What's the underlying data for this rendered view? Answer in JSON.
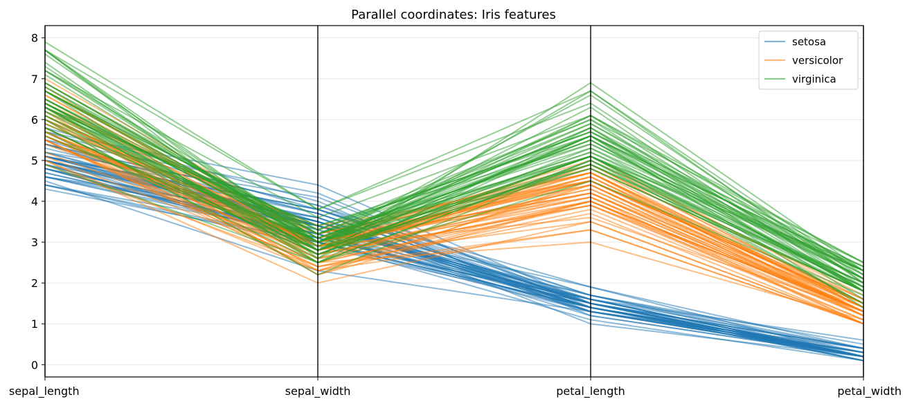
{
  "chart_data": {
    "type": "parallel-coordinates",
    "title": "Parallel coordinates: Iris features",
    "dimensions": [
      "sepal_length",
      "sepal_width",
      "petal_length",
      "petal_width"
    ],
    "ylim": [
      -0.3,
      8.3
    ],
    "yticks": [
      "0",
      "1",
      "2",
      "3",
      "4",
      "5",
      "6",
      "7",
      "8"
    ],
    "grid": "horizontal",
    "legend_position": "top-right",
    "series": [
      {
        "name": "setosa",
        "color": "#1f77b4",
        "lines": [
          [
            5.1,
            3.5,
            1.4,
            0.2
          ],
          [
            4.9,
            3.0,
            1.4,
            0.2
          ],
          [
            4.7,
            3.2,
            1.3,
            0.2
          ],
          [
            4.6,
            3.1,
            1.5,
            0.2
          ],
          [
            5.0,
            3.6,
            1.4,
            0.2
          ],
          [
            5.4,
            3.9,
            1.7,
            0.4
          ],
          [
            4.6,
            3.4,
            1.4,
            0.3
          ],
          [
            5.0,
            3.4,
            1.5,
            0.2
          ],
          [
            4.4,
            2.9,
            1.4,
            0.2
          ],
          [
            4.9,
            3.1,
            1.5,
            0.1
          ],
          [
            5.4,
            3.7,
            1.5,
            0.2
          ],
          [
            4.8,
            3.4,
            1.6,
            0.2
          ],
          [
            4.8,
            3.0,
            1.4,
            0.1
          ],
          [
            4.3,
            3.0,
            1.1,
            0.1
          ],
          [
            5.8,
            4.0,
            1.2,
            0.2
          ],
          [
            5.7,
            4.4,
            1.5,
            0.4
          ],
          [
            5.4,
            3.9,
            1.3,
            0.4
          ],
          [
            5.1,
            3.5,
            1.4,
            0.3
          ],
          [
            5.7,
            3.8,
            1.7,
            0.3
          ],
          [
            5.1,
            3.8,
            1.5,
            0.3
          ],
          [
            5.4,
            3.4,
            1.7,
            0.2
          ],
          [
            5.1,
            3.7,
            1.5,
            0.4
          ],
          [
            4.6,
            3.6,
            1.0,
            0.2
          ],
          [
            5.1,
            3.3,
            1.7,
            0.5
          ],
          [
            4.8,
            3.4,
            1.9,
            0.2
          ],
          [
            5.0,
            3.0,
            1.6,
            0.2
          ],
          [
            5.0,
            3.4,
            1.6,
            0.4
          ],
          [
            5.2,
            3.5,
            1.5,
            0.2
          ],
          [
            5.2,
            3.4,
            1.4,
            0.2
          ],
          [
            4.7,
            3.2,
            1.6,
            0.2
          ],
          [
            4.8,
            3.1,
            1.6,
            0.2
          ],
          [
            5.4,
            3.4,
            1.5,
            0.4
          ],
          [
            5.2,
            4.1,
            1.5,
            0.1
          ],
          [
            5.5,
            4.2,
            1.4,
            0.2
          ],
          [
            4.9,
            3.1,
            1.5,
            0.2
          ],
          [
            5.0,
            3.2,
            1.2,
            0.2
          ],
          [
            5.5,
            3.5,
            1.3,
            0.2
          ],
          [
            4.9,
            3.6,
            1.4,
            0.1
          ],
          [
            4.4,
            3.0,
            1.3,
            0.2
          ],
          [
            5.1,
            3.4,
            1.5,
            0.2
          ],
          [
            5.0,
            3.5,
            1.3,
            0.3
          ],
          [
            4.5,
            2.3,
            1.3,
            0.3
          ],
          [
            4.4,
            3.2,
            1.3,
            0.2
          ],
          [
            5.0,
            3.5,
            1.6,
            0.6
          ],
          [
            5.1,
            3.8,
            1.9,
            0.4
          ],
          [
            4.8,
            3.0,
            1.4,
            0.3
          ],
          [
            5.1,
            3.8,
            1.6,
            0.2
          ],
          [
            4.6,
            3.2,
            1.4,
            0.2
          ],
          [
            5.3,
            3.7,
            1.5,
            0.2
          ],
          [
            5.0,
            3.3,
            1.4,
            0.2
          ]
        ]
      },
      {
        "name": "versicolor",
        "color": "#ff7f0e",
        "lines": [
          [
            7.0,
            3.2,
            4.7,
            1.4
          ],
          [
            6.4,
            3.2,
            4.5,
            1.5
          ],
          [
            6.9,
            3.1,
            4.9,
            1.5
          ],
          [
            5.5,
            2.3,
            4.0,
            1.3
          ],
          [
            6.5,
            2.8,
            4.6,
            1.5
          ],
          [
            5.7,
            2.8,
            4.5,
            1.3
          ],
          [
            6.3,
            3.3,
            4.7,
            1.6
          ],
          [
            4.9,
            2.4,
            3.3,
            1.0
          ],
          [
            6.6,
            2.9,
            4.6,
            1.3
          ],
          [
            5.2,
            2.7,
            3.9,
            1.4
          ],
          [
            5.0,
            2.0,
            3.5,
            1.0
          ],
          [
            5.9,
            3.0,
            4.2,
            1.5
          ],
          [
            6.0,
            2.2,
            4.0,
            1.0
          ],
          [
            6.1,
            2.9,
            4.7,
            1.4
          ],
          [
            5.6,
            2.9,
            3.6,
            1.3
          ],
          [
            6.7,
            3.1,
            4.4,
            1.4
          ],
          [
            5.6,
            3.0,
            4.5,
            1.5
          ],
          [
            5.8,
            2.7,
            4.1,
            1.0
          ],
          [
            6.2,
            2.2,
            4.5,
            1.5
          ],
          [
            5.6,
            2.5,
            3.9,
            1.1
          ],
          [
            5.9,
            3.2,
            4.8,
            1.8
          ],
          [
            6.1,
            2.8,
            4.0,
            1.3
          ],
          [
            6.3,
            2.5,
            4.9,
            1.5
          ],
          [
            6.1,
            2.8,
            4.7,
            1.2
          ],
          [
            6.4,
            2.9,
            4.3,
            1.3
          ],
          [
            6.6,
            3.0,
            4.4,
            1.4
          ],
          [
            6.8,
            2.8,
            4.8,
            1.4
          ],
          [
            6.7,
            3.0,
            5.0,
            1.7
          ],
          [
            6.0,
            2.9,
            4.5,
            1.5
          ],
          [
            5.7,
            2.6,
            3.5,
            1.0
          ],
          [
            5.5,
            2.4,
            3.8,
            1.1
          ],
          [
            5.5,
            2.4,
            3.7,
            1.0
          ],
          [
            5.8,
            2.7,
            3.9,
            1.2
          ],
          [
            6.0,
            2.7,
            5.1,
            1.6
          ],
          [
            5.4,
            3.0,
            4.5,
            1.5
          ],
          [
            6.0,
            3.4,
            4.5,
            1.6
          ],
          [
            6.7,
            3.1,
            4.7,
            1.5
          ],
          [
            6.3,
            2.3,
            4.4,
            1.3
          ],
          [
            5.6,
            3.0,
            4.1,
            1.3
          ],
          [
            5.5,
            2.5,
            4.0,
            1.3
          ],
          [
            5.5,
            2.6,
            4.4,
            1.2
          ],
          [
            6.1,
            3.0,
            4.6,
            1.4
          ],
          [
            5.8,
            2.6,
            4.0,
            1.2
          ],
          [
            5.0,
            2.3,
            3.3,
            1.0
          ],
          [
            5.6,
            2.7,
            4.2,
            1.3
          ],
          [
            5.7,
            3.0,
            4.2,
            1.2
          ],
          [
            5.7,
            2.9,
            4.2,
            1.3
          ],
          [
            6.2,
            2.9,
            4.3,
            1.3
          ],
          [
            5.1,
            2.5,
            3.0,
            1.1
          ],
          [
            5.7,
            2.8,
            4.1,
            1.3
          ]
        ]
      },
      {
        "name": "virginica",
        "color": "#2ca02c",
        "lines": [
          [
            6.3,
            3.3,
            6.0,
            2.5
          ],
          [
            5.8,
            2.7,
            5.1,
            1.9
          ],
          [
            7.1,
            3.0,
            5.9,
            2.1
          ],
          [
            6.3,
            2.9,
            5.6,
            1.8
          ],
          [
            6.5,
            3.0,
            5.8,
            2.2
          ],
          [
            7.6,
            3.0,
            6.6,
            2.1
          ],
          [
            4.9,
            2.5,
            4.5,
            1.7
          ],
          [
            7.3,
            2.9,
            6.3,
            1.8
          ],
          [
            6.7,
            2.5,
            5.8,
            1.8
          ],
          [
            7.2,
            3.6,
            6.1,
            2.5
          ],
          [
            6.5,
            3.2,
            5.1,
            2.0
          ],
          [
            6.4,
            2.7,
            5.3,
            1.9
          ],
          [
            6.8,
            3.0,
            5.5,
            2.1
          ],
          [
            5.7,
            2.5,
            5.0,
            2.0
          ],
          [
            5.8,
            2.8,
            5.1,
            2.4
          ],
          [
            6.4,
            3.2,
            5.3,
            2.3
          ],
          [
            6.5,
            3.0,
            5.5,
            1.8
          ],
          [
            7.7,
            3.8,
            6.7,
            2.2
          ],
          [
            7.7,
            2.6,
            6.9,
            2.3
          ],
          [
            6.0,
            2.2,
            5.0,
            1.5
          ],
          [
            6.9,
            3.2,
            5.7,
            2.3
          ],
          [
            5.6,
            2.8,
            4.9,
            2.0
          ],
          [
            7.7,
            2.8,
            6.7,
            2.0
          ],
          [
            6.3,
            2.7,
            4.9,
            1.8
          ],
          [
            6.7,
            3.3,
            5.7,
            2.1
          ],
          [
            7.2,
            3.2,
            6.0,
            1.8
          ],
          [
            6.2,
            2.8,
            4.8,
            1.8
          ],
          [
            6.1,
            3.0,
            4.9,
            1.8
          ],
          [
            6.4,
            2.8,
            5.6,
            2.1
          ],
          [
            7.2,
            3.0,
            5.8,
            1.6
          ],
          [
            7.4,
            2.8,
            6.1,
            1.9
          ],
          [
            7.9,
            3.8,
            6.4,
            2.0
          ],
          [
            6.4,
            2.8,
            5.6,
            2.2
          ],
          [
            6.3,
            2.8,
            5.1,
            1.5
          ],
          [
            6.1,
            2.6,
            5.6,
            1.4
          ],
          [
            7.7,
            3.0,
            6.1,
            2.3
          ],
          [
            6.3,
            3.4,
            5.6,
            2.4
          ],
          [
            6.4,
            3.1,
            5.5,
            1.8
          ],
          [
            6.0,
            3.0,
            4.8,
            1.8
          ],
          [
            6.9,
            3.1,
            5.4,
            2.1
          ],
          [
            6.7,
            3.1,
            5.6,
            2.4
          ],
          [
            6.9,
            3.1,
            5.1,
            2.3
          ],
          [
            5.8,
            2.7,
            5.1,
            1.9
          ],
          [
            6.8,
            3.2,
            5.9,
            2.3
          ],
          [
            6.7,
            3.3,
            5.7,
            2.5
          ],
          [
            6.7,
            3.0,
            5.2,
            2.3
          ],
          [
            6.3,
            2.5,
            5.0,
            1.9
          ],
          [
            6.5,
            3.0,
            5.2,
            2.0
          ],
          [
            6.2,
            3.4,
            5.4,
            2.3
          ],
          [
            5.9,
            3.0,
            5.1,
            1.8
          ]
        ]
      }
    ]
  }
}
